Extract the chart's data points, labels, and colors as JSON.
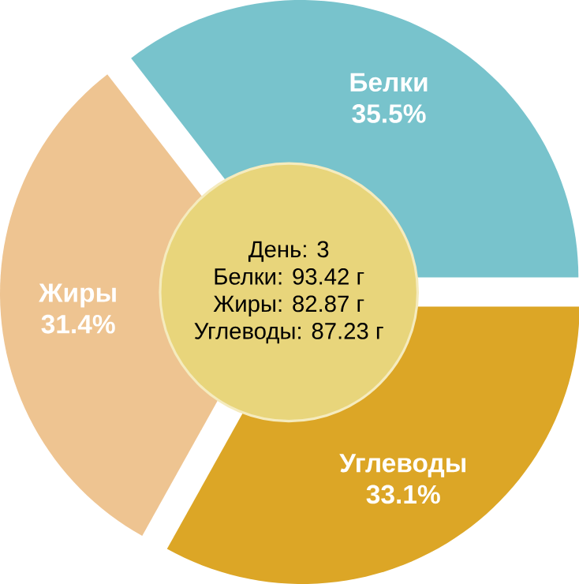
{
  "chart_data": {
    "type": "pie",
    "categories": [
      "Белки",
      "Жиры",
      "Углеводы"
    ],
    "values": [
      35.5,
      31.4,
      33.1
    ],
    "value_labels": [
      "35.5%",
      "31.4%",
      "33.1%"
    ],
    "colors": [
      "#78c3cc",
      "#eec491",
      "#dca626"
    ],
    "annotations": [
      "День: 3",
      "Белки: 93.42 г",
      "Жиры: 82.87 г",
      "Углеводы: 87.23 г"
    ]
  }
}
